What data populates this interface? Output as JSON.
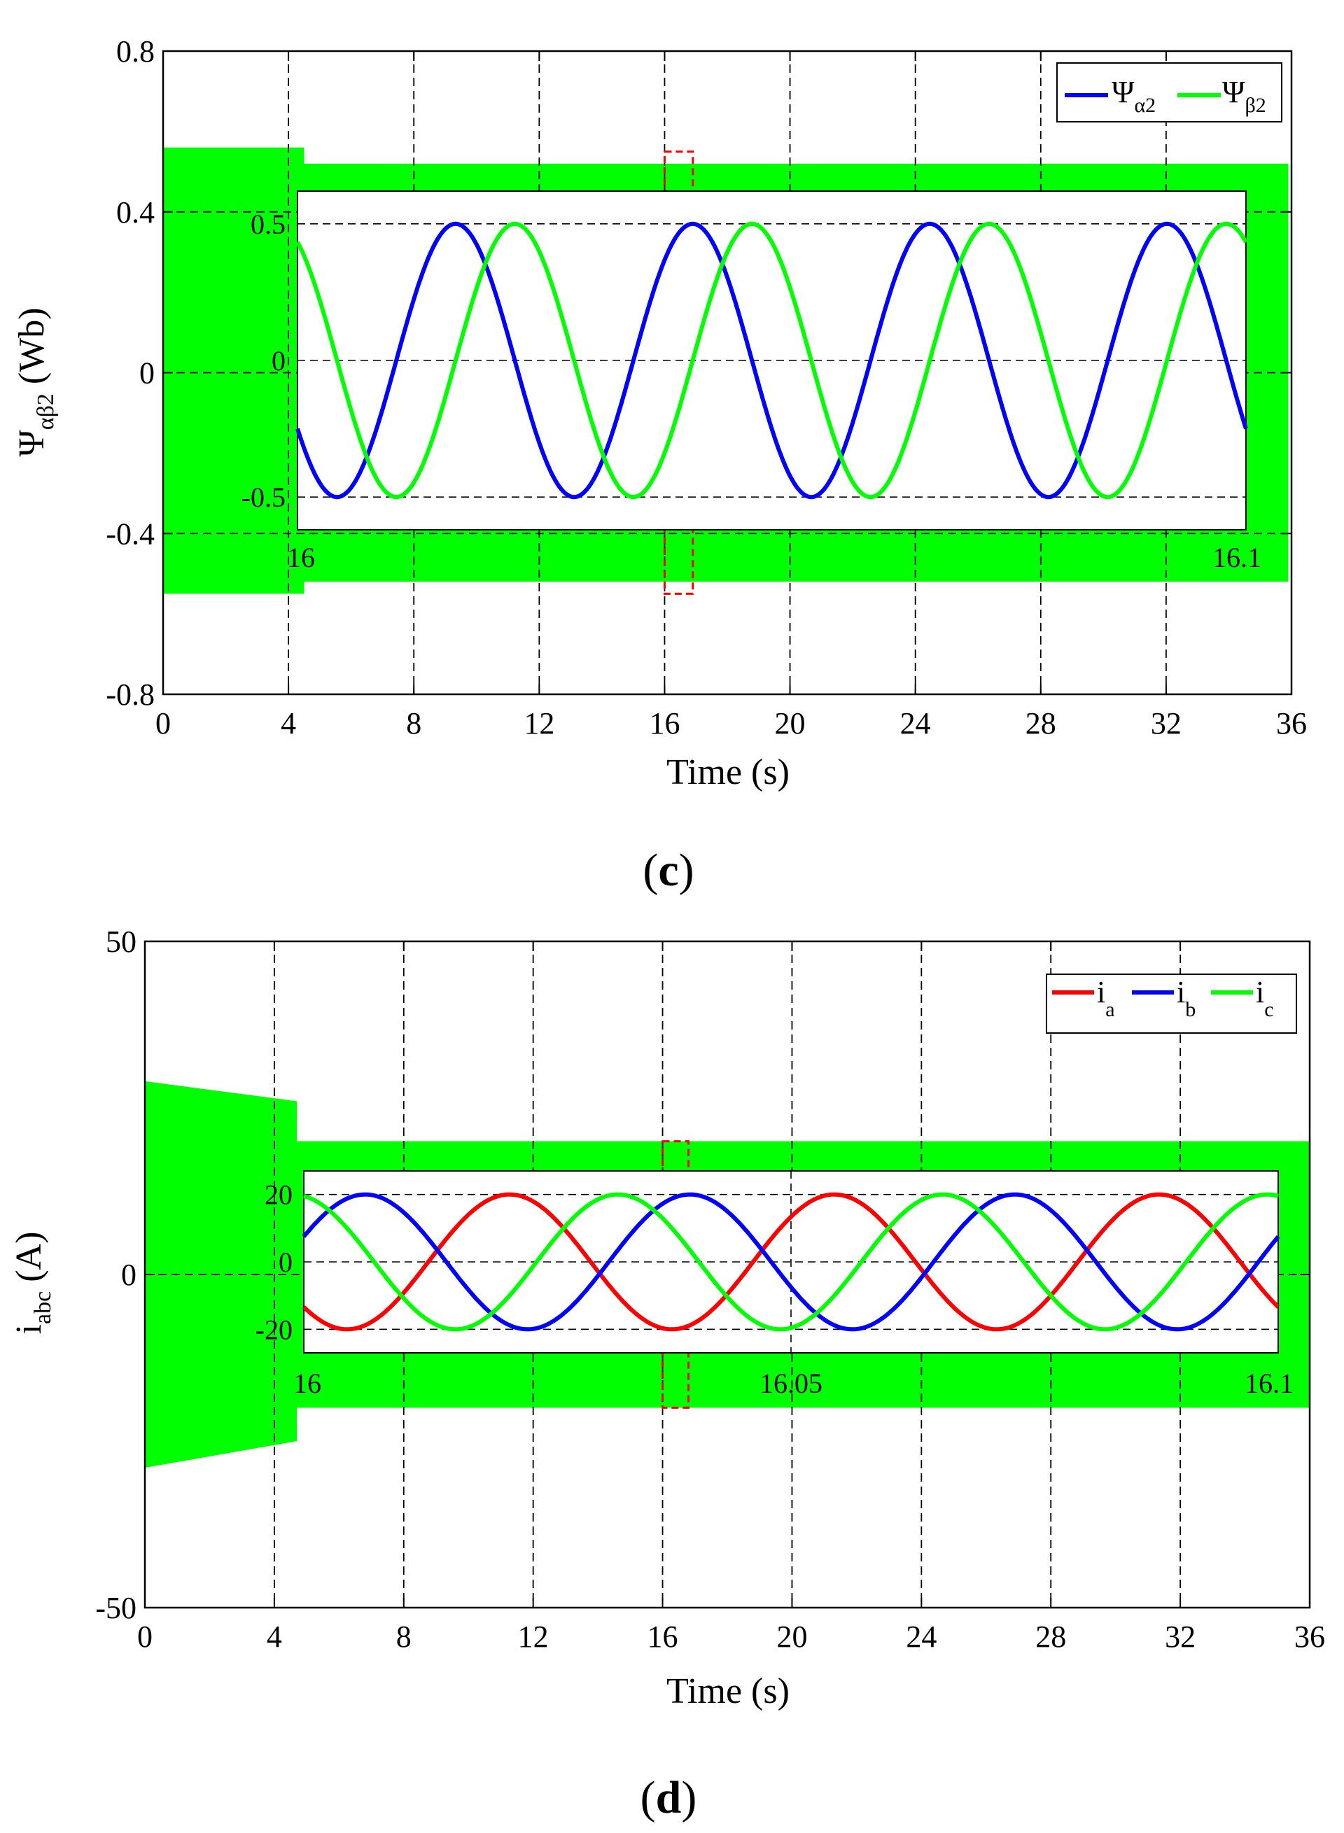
{
  "colors": {
    "red": "#ff0000",
    "blue": "#0000ff",
    "green": "#00ff00",
    "zoom_box": "#ff0000",
    "grid": "#000000"
  },
  "panels": [
    {
      "id": "c",
      "label_open": "(",
      "label_letter": "c",
      "label_close": ")"
    },
    {
      "id": "d",
      "label_open": "(",
      "label_letter": "d",
      "label_close": ")"
    }
  ],
  "chart_data": [
    {
      "type": "line",
      "panel": "c",
      "xlabel": "Time (s)",
      "ylabel_main": "Ψ",
      "ylabel_sub": "αβ2",
      "ylabel_unit": "(Wb)",
      "xlim": [
        0,
        36
      ],
      "ylim": [
        -0.8,
        0.8
      ],
      "xticks": [
        0,
        4,
        8,
        12,
        16,
        20,
        24,
        28,
        32,
        36
      ],
      "yticks": [
        -0.8,
        -0.4,
        0,
        0.4,
        0.8
      ],
      "ytick_labels": [
        "-0.8",
        "-0.4",
        "0",
        "0.4",
        "0.8"
      ],
      "grid": true,
      "legend_position": "top-right",
      "series": [
        {
          "name": "Ψ",
          "name_sub": "α2",
          "color": "#0000ff"
        },
        {
          "name": "Ψ",
          "name_sub": "β2",
          "color": "#00ff00"
        }
      ],
      "envelope": {
        "color": "#00ff00",
        "startup": {
          "x": [
            0,
            4.5
          ],
          "top": 0.56,
          "bottom": -0.55
        },
        "steady": {
          "x": [
            4.5,
            35.9
          ],
          "top": 0.52,
          "bottom": -0.52
        }
      },
      "zoom_marker": {
        "x": [
          16,
          16.9
        ],
        "y": [
          -0.55,
          0.55
        ]
      },
      "inset": {
        "xlim": [
          16,
          16.1
        ],
        "ylim": [
          -0.62,
          0.62
        ],
        "xtick_labels": [
          "16",
          "16.1"
        ],
        "yticks": [
          -0.5,
          0,
          0.5
        ],
        "ytick_labels": [
          "-0.5",
          "0",
          "0.5"
        ],
        "frequency_hz": 40,
        "amplitude": 0.5,
        "series_phase_deg": [
          210,
          120
        ]
      }
    },
    {
      "type": "line",
      "panel": "d",
      "xlabel": "Time (s)",
      "ylabel_main": "i",
      "ylabel_sub": "abc",
      "ylabel_unit": "(A)",
      "xlim": [
        0,
        36
      ],
      "ylim": [
        -50,
        50
      ],
      "xticks": [
        0,
        4,
        8,
        12,
        16,
        20,
        24,
        28,
        32,
        36
      ],
      "yticks": [
        -50,
        0,
        50
      ],
      "ytick_labels": [
        "-50",
        "0",
        "50"
      ],
      "grid": true,
      "legend_position": "top-right",
      "series": [
        {
          "name": "i",
          "name_sub": "a",
          "color": "#ff0000"
        },
        {
          "name": "i",
          "name_sub": "b",
          "color": "#0000ff"
        },
        {
          "name": "i",
          "name_sub": "c",
          "color": "#00ff00"
        }
      ],
      "envelope": {
        "color": "#00ff00",
        "startup_start": {
          "x": 0,
          "top": 29,
          "bottom": -29
        },
        "startup_end": {
          "x": 4.7,
          "top": 26,
          "bottom": -25
        },
        "steady": {
          "x": [
            4.7,
            36
          ],
          "top": 20,
          "bottom": -20
        }
      },
      "zoom_marker": {
        "x": [
          16,
          16.8
        ],
        "y": [
          -20,
          20
        ]
      },
      "inset": {
        "xlim": [
          16,
          16.1
        ],
        "ylim": [
          -27,
          27
        ],
        "xtick_labels": [
          "16",
          "16.05",
          "16.1"
        ],
        "yticks": [
          -20,
          0,
          20
        ],
        "ytick_labels": [
          "-20",
          "0",
          "20"
        ],
        "frequency_hz": 30,
        "amplitude": 20,
        "series_phase_deg": [
          222,
          22,
          102
        ]
      }
    }
  ]
}
